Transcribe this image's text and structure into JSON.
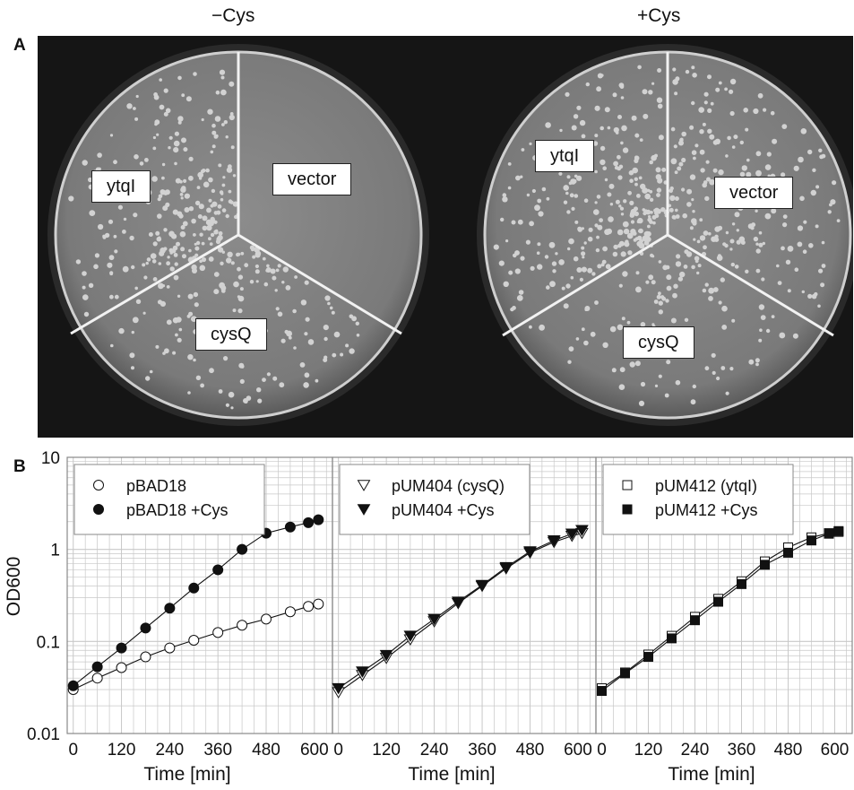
{
  "panel_a": {
    "letter": "A",
    "plates": [
      {
        "condition": "−Cys",
        "sectors": [
          "ytqI",
          "vector",
          "cysQ"
        ]
      },
      {
        "condition": "+Cys",
        "sectors": [
          "ytqI",
          "vector",
          "cysQ"
        ]
      }
    ]
  },
  "panel_b": {
    "letter": "B"
  },
  "colors": {
    "grid": "#c8c8c8",
    "frame": "#888888",
    "ink": "#111111",
    "photo_bg": "#151515",
    "agar": "#868686"
  },
  "chart_data": [
    {
      "type": "line",
      "xlabel": "Time [min]",
      "ylabel": "OD600",
      "x_ticks": [
        "0",
        "120",
        "240",
        "360",
        "480",
        "600"
      ],
      "y_ticks": [
        "0.01",
        "0.1",
        "1",
        "10"
      ],
      "xlim": [
        -15,
        645
      ],
      "ylim": [
        0.01,
        10
      ],
      "yscale": "log",
      "grid": true,
      "legend_position": "top-left",
      "series": [
        {
          "name": "pBAD18",
          "marker": "circle-open",
          "x": [
            0,
            60,
            120,
            180,
            240,
            300,
            360,
            420,
            480,
            540,
            585,
            610
          ],
          "y": [
            0.03,
            0.04,
            0.052,
            0.068,
            0.085,
            0.103,
            0.125,
            0.15,
            0.175,
            0.21,
            0.24,
            0.255
          ]
        },
        {
          "name": "pBAD18 +Cys",
          "marker": "circle-filled",
          "x": [
            0,
            60,
            120,
            180,
            240,
            300,
            360,
            420,
            480,
            540,
            585,
            610
          ],
          "y": [
            0.033,
            0.053,
            0.085,
            0.14,
            0.23,
            0.38,
            0.6,
            1.0,
            1.5,
            1.75,
            1.95,
            2.1
          ]
        }
      ]
    },
    {
      "type": "line",
      "xlabel": "Time [min]",
      "x_ticks": [
        "0",
        "120",
        "240",
        "360",
        "480",
        "600"
      ],
      "xlim": [
        -15,
        645
      ],
      "ylim": [
        0.01,
        10
      ],
      "yscale": "log",
      "grid": true,
      "legend_position": "top-left",
      "series": [
        {
          "name": "pUM404 (cysQ)",
          "marker": "triangle-down-open",
          "x": [
            0,
            60,
            120,
            180,
            240,
            300,
            360,
            420,
            480,
            540,
            585,
            610
          ],
          "y": [
            0.028,
            0.043,
            0.066,
            0.105,
            0.165,
            0.26,
            0.4,
            0.62,
            0.92,
            1.2,
            1.4,
            1.5
          ]
        },
        {
          "name": "pUM404 +Cys",
          "marker": "triangle-down-filled",
          "x": [
            0,
            60,
            120,
            180,
            240,
            300,
            360,
            420,
            480,
            540,
            585,
            610
          ],
          "y": [
            0.031,
            0.047,
            0.071,
            0.115,
            0.175,
            0.27,
            0.41,
            0.64,
            0.95,
            1.25,
            1.48,
            1.62
          ]
        }
      ]
    },
    {
      "type": "line",
      "xlabel": "Time [min]",
      "x_ticks": [
        "0",
        "120",
        "240",
        "360",
        "480",
        "600"
      ],
      "xlim": [
        -15,
        645
      ],
      "ylim": [
        0.01,
        10
      ],
      "yscale": "log",
      "grid": true,
      "legend_position": "top-left",
      "series": [
        {
          "name": "pUM412 (ytqI)",
          "marker": "square-open",
          "x": [
            0,
            60,
            120,
            180,
            240,
            300,
            360,
            420,
            480,
            540,
            585,
            610
          ],
          "y": [
            0.031,
            0.046,
            0.072,
            0.115,
            0.185,
            0.29,
            0.45,
            0.74,
            1.05,
            1.35,
            1.5,
            1.55
          ]
        },
        {
          "name": "pUM412 +Cys",
          "marker": "square-filled",
          "x": [
            0,
            60,
            120,
            180,
            240,
            300,
            360,
            420,
            480,
            540,
            585,
            610
          ],
          "y": [
            0.029,
            0.045,
            0.068,
            0.108,
            0.17,
            0.27,
            0.42,
            0.68,
            0.92,
            1.25,
            1.48,
            1.58
          ]
        }
      ]
    }
  ]
}
